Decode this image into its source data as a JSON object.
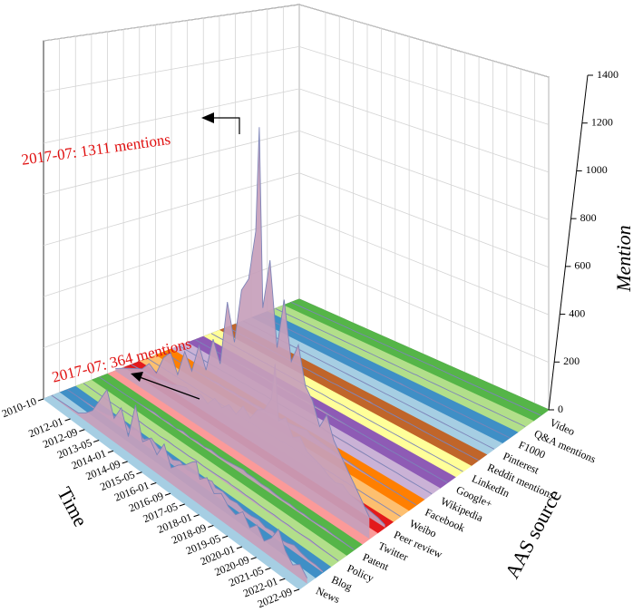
{
  "chart_data": {
    "type": "waterfall3d",
    "xlabel": "Time",
    "ylabel": "Mention",
    "depth_label": "AAS source",
    "x": [
      "2010-10",
      "2011-04",
      "2012-01",
      "2012-05",
      "2012-09",
      "2013-01",
      "2013-05",
      "2013-09",
      "2014-01",
      "2014-05",
      "2014-09",
      "2015-01",
      "2015-05",
      "2015-09",
      "2016-01",
      "2016-05",
      "2016-09",
      "2017-01",
      "2017-05",
      "2017-07",
      "2017-09",
      "2018-01",
      "2018-05",
      "2018-09",
      "2019-01",
      "2019-05",
      "2019-09",
      "2020-01",
      "2020-05",
      "2020-09",
      "2021-01",
      "2021-05",
      "2021-09",
      "2022-01",
      "2022-05",
      "2022-09"
    ],
    "xticks": [
      "2010-10",
      "2012-01",
      "2012-09",
      "2013-05",
      "2014-01",
      "2014-09",
      "2015-05",
      "2016-01",
      "2016-09",
      "2017-05",
      "2018-01",
      "2018-09",
      "2019-05",
      "2020-01",
      "2020-09",
      "2021-05",
      "2022-01",
      "2022-09"
    ],
    "ylim": [
      0,
      1400
    ],
    "yticks": [
      0,
      200,
      400,
      600,
      800,
      1000,
      1200,
      1400
    ],
    "grid": true,
    "surface_color": "#c79fbb",
    "edge_color": "#7d84b8",
    "series": [
      {
        "name": "News",
        "color": "#a6cee3",
        "values": [
          2,
          5,
          10,
          30,
          60,
          120,
          180,
          90,
          150,
          60,
          200,
          80,
          110,
          70,
          130,
          60,
          90,
          110,
          140,
          150,
          95,
          120,
          80,
          100,
          70,
          60,
          90,
          50,
          80,
          40,
          70,
          120,
          60,
          30,
          50,
          20
        ]
      },
      {
        "name": "Blog",
        "color": "#3f8fc6",
        "values": [
          0,
          2,
          5,
          8,
          15,
          30,
          40,
          20,
          35,
          20,
          45,
          25,
          30,
          20,
          35,
          20,
          25,
          30,
          40,
          45,
          30,
          35,
          25,
          30,
          20,
          20,
          25,
          15,
          20,
          10,
          15,
          25,
          15,
          10,
          10,
          5
        ]
      },
      {
        "name": "Policy",
        "color": "#b2df8a",
        "values": [
          0,
          0,
          0,
          1,
          2,
          3,
          5,
          3,
          4,
          2,
          5,
          3,
          4,
          3,
          6,
          4,
          5,
          6,
          8,
          9,
          7,
          8,
          6,
          7,
          5,
          5,
          6,
          4,
          5,
          3,
          4,
          6,
          4,
          3,
          3,
          2
        ]
      },
      {
        "name": "Patent",
        "color": "#55b548",
        "values": [
          0,
          0,
          1,
          2,
          3,
          5,
          8,
          4,
          6,
          3,
          10,
          5,
          8,
          6,
          12,
          8,
          10,
          14,
          18,
          20,
          15,
          16,
          12,
          14,
          10,
          8,
          10,
          6,
          8,
          5,
          6,
          8,
          5,
          4,
          3,
          2
        ]
      },
      {
        "name": "Twitter",
        "color": "#fb9a99",
        "values": [
          10,
          40,
          80,
          120,
          100,
          180,
          220,
          150,
          260,
          200,
          320,
          240,
          380,
          300,
          560,
          420,
          640,
          700,
          900,
          1311,
          620,
          820,
          500,
          700,
          480,
          560,
          420,
          380,
          300,
          360,
          280,
          240,
          200,
          160,
          120,
          80
        ]
      },
      {
        "name": "Peer review",
        "color": "#e31a1c",
        "values": [
          0,
          5,
          10,
          20,
          25,
          40,
          50,
          35,
          60,
          40,
          80,
          60,
          90,
          70,
          120,
          90,
          140,
          160,
          220,
          364,
          150,
          180,
          120,
          140,
          100,
          90,
          80,
          60,
          50,
          60,
          40,
          35,
          30,
          25,
          20,
          10
        ]
      },
      {
        "name": "Weibo",
        "color": "#fdbf6f",
        "values": [
          0,
          0,
          0,
          0,
          0,
          0,
          0,
          0,
          0,
          0,
          0,
          0,
          0,
          0,
          0,
          0,
          2,
          3,
          5,
          6,
          4,
          3,
          2,
          2,
          1,
          1,
          1,
          0,
          0,
          0,
          0,
          0,
          0,
          0,
          0,
          0
        ]
      },
      {
        "name": "Facebook",
        "color": "#ff7f00",
        "values": [
          0,
          0,
          1,
          2,
          3,
          5,
          8,
          6,
          10,
          8,
          12,
          10,
          14,
          12,
          18,
          16,
          20,
          24,
          30,
          35,
          25,
          22,
          18,
          16,
          12,
          10,
          8,
          6,
          5,
          4,
          3,
          3,
          2,
          2,
          1,
          1
        ]
      },
      {
        "name": "Wikipedia",
        "color": "#cab2d6",
        "values": [
          0,
          0,
          0,
          0,
          1,
          1,
          2,
          1,
          2,
          1,
          3,
          2,
          3,
          2,
          4,
          3,
          4,
          5,
          6,
          8,
          5,
          5,
          4,
          4,
          3,
          3,
          3,
          2,
          2,
          2,
          2,
          1,
          1,
          1,
          1,
          0
        ]
      },
      {
        "name": "Google+",
        "color": "#8e5bb5",
        "values": [
          0,
          0,
          1,
          2,
          3,
          5,
          6,
          4,
          6,
          5,
          8,
          6,
          7,
          5,
          8,
          6,
          6,
          5,
          4,
          4,
          3,
          2,
          2,
          1,
          1,
          0,
          0,
          0,
          0,
          0,
          0,
          0,
          0,
          0,
          0,
          0
        ]
      },
      {
        "name": "LinkedIn",
        "color": "#ffff99",
        "values": [
          0,
          0,
          0,
          0,
          0,
          0,
          0,
          0,
          0,
          0,
          0,
          0,
          0,
          0,
          1,
          0,
          0,
          1,
          0,
          1,
          0,
          0,
          0,
          0,
          0,
          0,
          0,
          0,
          0,
          0,
          0,
          0,
          0,
          0,
          0,
          0
        ]
      },
      {
        "name": "Reddit mentions",
        "color": "#c0652a",
        "values": [
          0,
          0,
          0,
          0,
          0,
          0,
          0,
          0,
          1,
          0,
          1,
          0,
          1,
          0,
          2,
          1,
          2,
          2,
          3,
          4,
          2,
          2,
          1,
          1,
          1,
          1,
          1,
          0,
          0,
          0,
          0,
          0,
          0,
          0,
          0,
          0
        ]
      },
      {
        "name": "Pinterest",
        "color": "#a6cee3",
        "values": [
          0,
          0,
          0,
          0,
          0,
          0,
          0,
          0,
          0,
          0,
          0,
          0,
          0,
          0,
          0,
          0,
          0,
          0,
          0,
          0,
          0,
          0,
          0,
          0,
          0,
          0,
          0,
          0,
          0,
          0,
          0,
          0,
          0,
          0,
          0,
          0
        ]
      },
      {
        "name": "F1000",
        "color": "#3f8fc6",
        "values": [
          0,
          0,
          0,
          0,
          0,
          0,
          0,
          0,
          0,
          0,
          1,
          0,
          1,
          0,
          1,
          1,
          1,
          2,
          2,
          3,
          2,
          1,
          1,
          1,
          0,
          0,
          0,
          0,
          0,
          0,
          0,
          0,
          0,
          0,
          0,
          0
        ]
      },
      {
        "name": "Q&A mentions",
        "color": "#b2df8a",
        "values": [
          0,
          0,
          0,
          0,
          0,
          0,
          0,
          0,
          0,
          0,
          0,
          0,
          0,
          0,
          0,
          0,
          0,
          0,
          0,
          1,
          0,
          0,
          0,
          0,
          0,
          0,
          0,
          0,
          0,
          0,
          0,
          0,
          0,
          0,
          0,
          0
        ]
      },
      {
        "name": "Video",
        "color": "#55b548",
        "values": [
          0,
          0,
          0,
          0,
          0,
          0,
          0,
          0,
          0,
          0,
          0,
          0,
          0,
          0,
          0,
          0,
          1,
          1,
          1,
          2,
          1,
          1,
          0,
          0,
          0,
          0,
          0,
          0,
          0,
          0,
          0,
          0,
          0,
          0,
          0,
          0
        ]
      }
    ],
    "annotations": [
      "2017-07: 1311 mentions",
      "2017-07: 364 mentions"
    ]
  }
}
